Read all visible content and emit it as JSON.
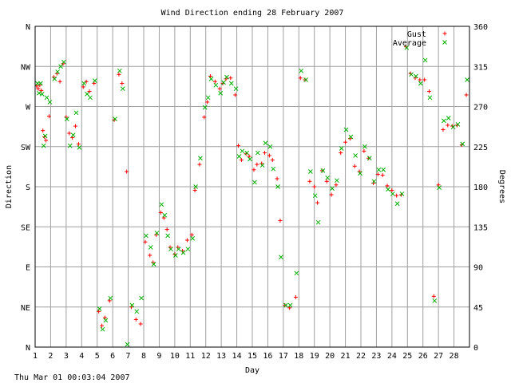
{
  "chart_data": {
    "type": "scatter",
    "title": "Wind Direction ending 28 February 2007",
    "xlabel": "Day",
    "ylabel_left": "Direction",
    "ylabel_right": "Degrees",
    "timestamp": "Thu Mar 01 00:03:04 2007",
    "xlim": [
      1,
      29
    ],
    "ylim": [
      0,
      360
    ],
    "grid": true,
    "legend_placement": "top-right",
    "x_ticks": [
      1,
      2,
      3,
      4,
      5,
      6,
      7,
      8,
      9,
      10,
      11,
      12,
      13,
      14,
      15,
      16,
      17,
      18,
      19,
      20,
      21,
      22,
      23,
      24,
      25,
      26,
      27,
      28
    ],
    "left_ticks": [
      {
        "v": 0,
        "label": "N"
      },
      {
        "v": 45,
        "label": "NE"
      },
      {
        "v": 90,
        "label": "E"
      },
      {
        "v": 135,
        "label": "SE"
      },
      {
        "v": 180,
        "label": "S"
      },
      {
        "v": 225,
        "label": "SW"
      },
      {
        "v": 270,
        "label": "W"
      },
      {
        "v": 315,
        "label": "NW"
      },
      {
        "v": 360,
        "label": "N"
      }
    ],
    "right_ticks": [
      0,
      45,
      90,
      135,
      180,
      225,
      270,
      315,
      360
    ],
    "series": [
      {
        "name": "Gust",
        "marker": "plus",
        "color": "#ff0000",
        "x": [
          1.1,
          1.2,
          1.3,
          1.4,
          1.5,
          1.6,
          1.7,
          1.9,
          2.2,
          2.4,
          2.6,
          2.8,
          3.0,
          3.2,
          3.4,
          3.6,
          3.8,
          4.1,
          4.3,
          4.5,
          4.8,
          5.1,
          5.3,
          5.5,
          5.8,
          6.1,
          6.4,
          6.6,
          6.9,
          7.2,
          7.5,
          7.8,
          8.1,
          8.4,
          8.6,
          8.8,
          9.1,
          9.3,
          9.5,
          9.7,
          10.0,
          10.2,
          10.5,
          10.8,
          11.1,
          11.3,
          11.6,
          11.9,
          12.1,
          12.3,
          12.6,
          12.9,
          13.1,
          13.3,
          13.6,
          13.9,
          14.1,
          14.3,
          14.6,
          14.8,
          15.1,
          15.3,
          15.6,
          15.8,
          16.1,
          16.3,
          16.6,
          16.8,
          17.1,
          17.4,
          17.8,
          18.1,
          18.4,
          18.7,
          19.0,
          19.2,
          19.5,
          19.8,
          20.1,
          20.4,
          20.7,
          21.0,
          21.3,
          21.6,
          21.9,
          22.2,
          22.5,
          22.8,
          23.1,
          23.4,
          23.7,
          24.0,
          24.3,
          24.6,
          24.9,
          25.2,
          25.5,
          25.8,
          26.1,
          26.4,
          26.7,
          27.0,
          27.3,
          27.6,
          27.9,
          28.2,
          28.5,
          28.8
        ],
        "y": [
          293,
          290,
          294,
          288,
          243,
          236,
          232,
          259,
          303,
          307,
          298,
          318,
          258,
          240,
          235,
          248,
          228,
          292,
          298,
          287,
          296,
          40,
          24,
          33,
          52,
          255,
          306,
          296,
          197,
          45,
          31,
          26,
          118,
          103,
          95,
          126,
          151,
          145,
          132,
          112,
          104,
          112,
          108,
          120,
          126,
          176,
          205,
          258,
          275,
          304,
          298,
          290,
          296,
          301,
          302,
          283,
          226,
          210,
          217,
          214,
          199,
          205,
          206,
          218,
          215,
          210,
          189,
          142,
          47,
          44,
          56,
          302,
          300,
          186,
          180,
          162,
          198,
          186,
          171,
          182,
          218,
          230,
          234,
          203,
          197,
          220,
          212,
          184,
          194,
          193,
          181,
          176,
          170,
          171,
          337,
          307,
          302,
          300,
          300,
          287,
          57,
          182,
          244,
          249,
          248,
          249,
          227,
          283
        ]
      },
      {
        "name": "Average",
        "marker": "cross",
        "color": "#00b000",
        "x": [
          1.15,
          1.25,
          1.35,
          1.45,
          1.55,
          1.65,
          1.75,
          1.95,
          2.25,
          2.45,
          2.65,
          2.85,
          3.05,
          3.25,
          3.45,
          3.65,
          3.85,
          4.15,
          4.35,
          4.55,
          4.85,
          5.15,
          5.35,
          5.55,
          5.85,
          6.15,
          6.45,
          6.65,
          6.95,
          7.25,
          7.55,
          7.85,
          8.15,
          8.45,
          8.65,
          8.85,
          9.15,
          9.35,
          9.55,
          9.75,
          10.05,
          10.25,
          10.55,
          10.85,
          11.15,
          11.35,
          11.65,
          11.95,
          12.15,
          12.35,
          12.65,
          12.95,
          13.15,
          13.35,
          13.65,
          13.95,
          14.15,
          14.35,
          14.65,
          14.85,
          15.15,
          15.35,
          15.65,
          15.85,
          16.15,
          16.35,
          16.65,
          16.85,
          17.15,
          17.45,
          17.85,
          18.15,
          18.45,
          18.75,
          19.05,
          19.25,
          19.55,
          19.85,
          20.15,
          20.45,
          20.75,
          21.05,
          21.35,
          21.65,
          21.95,
          22.25,
          22.55,
          22.85,
          23.15,
          23.45,
          23.75,
          24.05,
          24.35,
          24.65,
          24.95,
          25.25,
          25.55,
          25.85,
          26.15,
          26.45,
          26.75,
          27.05,
          27.35,
          27.65,
          27.95,
          28.25,
          28.55,
          28.85
        ],
        "y": [
          296,
          285,
          296,
          284,
          226,
          237,
          280,
          275,
          301,
          309,
          315,
          320,
          256,
          226,
          238,
          263,
          224,
          296,
          284,
          280,
          299,
          43,
          20,
          30,
          55,
          256,
          310,
          290,
          3,
          47,
          40,
          55,
          125,
          112,
          93,
          128,
          160,
          148,
          125,
          110,
          103,
          110,
          106,
          110,
          122,
          180,
          212,
          269,
          280,
          301,
          294,
          285,
          297,
          303,
          296,
          290,
          214,
          220,
          218,
          211,
          185,
          218,
          204,
          229,
          225,
          200,
          180,
          101,
          47,
          47,
          83,
          310,
          300,
          197,
          170,
          140,
          198,
          190,
          178,
          187,
          223,
          244,
          236,
          215,
          195,
          225,
          212,
          186,
          199,
          199,
          177,
          172,
          161,
          172,
          336,
          306,
          304,
          296,
          322,
          280,
          52,
          179,
          254,
          257,
          247,
          250,
          228,
          300
        ]
      }
    ]
  }
}
